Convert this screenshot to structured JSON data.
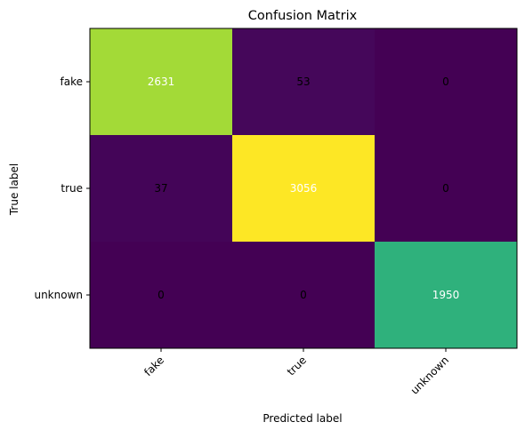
{
  "chart_data": {
    "type": "heatmap",
    "title": "Confusion Matrix",
    "xlabel": "Predicted label",
    "ylabel": "True label",
    "x_categories": [
      "fake",
      "true",
      "unknown"
    ],
    "y_categories": [
      "fake",
      "true",
      "unknown"
    ],
    "values": [
      [
        2631,
        53,
        0
      ],
      [
        37,
        3056,
        0
      ],
      [
        0,
        0,
        1950
      ]
    ],
    "colormap": "viridis",
    "value_range": [
      0,
      3056
    ],
    "text_color_light": "#ffffff",
    "text_color_dark": "#000000",
    "x_tick_rotation_deg": 45,
    "grid": false
  }
}
